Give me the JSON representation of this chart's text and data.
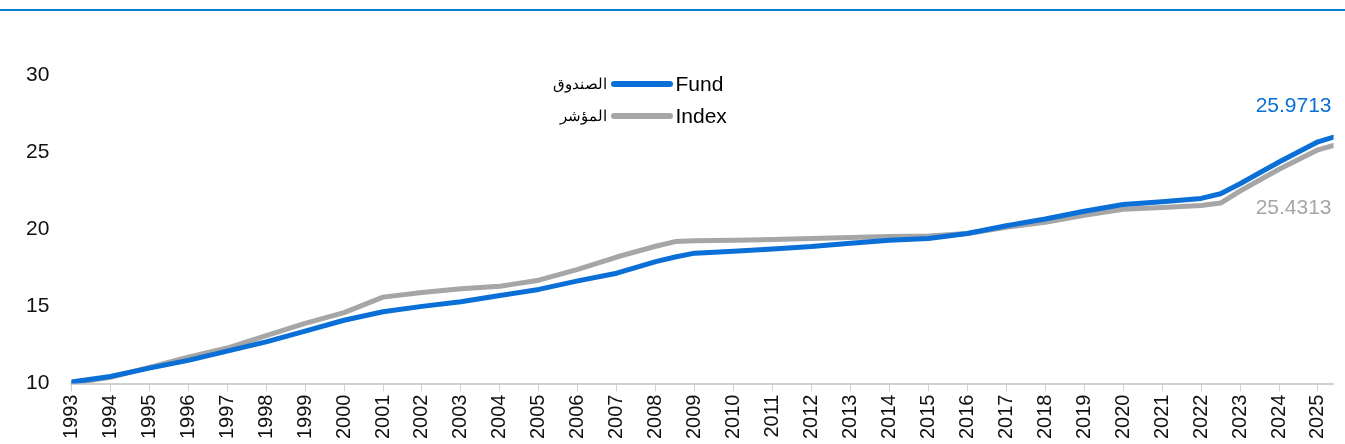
{
  "chart_data": {
    "type": "line",
    "x": [
      1993,
      1994,
      1995,
      1996,
      1997,
      1998,
      1999,
      2000,
      2001,
      2002,
      2003,
      2004,
      2005,
      2006,
      2007,
      2008,
      2008.5,
      2009,
      2010,
      2011,
      2012,
      2013,
      2014,
      2015,
      2016,
      2017,
      2018,
      2019,
      2020,
      2021,
      2022,
      2022.5,
      2023,
      2024,
      2025,
      2025.4
    ],
    "series": [
      {
        "name": "Fund",
        "color": "#0a6fd6",
        "values": [
          10.1,
          10.45,
          11.0,
          11.5,
          12.1,
          12.7,
          13.4,
          14.1,
          14.65,
          15.0,
          15.3,
          15.7,
          16.1,
          16.65,
          17.15,
          17.9,
          18.2,
          18.45,
          18.57,
          18.72,
          18.88,
          19.1,
          19.29,
          19.4,
          19.72,
          20.23,
          20.66,
          21.17,
          21.6,
          21.79,
          22.0,
          22.3,
          22.95,
          24.36,
          25.67,
          25.9713
        ]
      },
      {
        "name": "Index",
        "color": "#a6a6a6",
        "values": [
          10.0,
          10.4,
          11.05,
          11.7,
          12.3,
          13.1,
          13.9,
          14.6,
          15.6,
          15.9,
          16.15,
          16.3,
          16.7,
          17.4,
          18.2,
          18.9,
          19.2,
          19.25,
          19.29,
          19.33,
          19.4,
          19.47,
          19.53,
          19.56,
          19.72,
          20.13,
          20.45,
          20.91,
          21.29,
          21.41,
          21.54,
          21.7,
          22.48,
          23.89,
          25.15,
          25.4313
        ]
      }
    ],
    "annotations": [
      {
        "text": "25.9713",
        "x": 2025.4,
        "y": 25.9713
      },
      {
        "text": "25.4313",
        "x": 2025.4,
        "y": 25.4313
      },
      "الصندوق",
      "المؤشر"
    ],
    "xlim": [
      1993,
      2025.4
    ],
    "xticks": [
      1993,
      1994,
      1995,
      1996,
      1997,
      1998,
      1999,
      2000,
      2001,
      2002,
      2003,
      2004,
      2005,
      2006,
      2007,
      2008,
      2009,
      2010,
      2011,
      2012,
      2013,
      2014,
      2015,
      2016,
      2017,
      2018,
      2019,
      2020,
      2021,
      2022,
      2023,
      2024,
      2025
    ],
    "ylim": [
      10,
      30
    ],
    "yticks": [
      10,
      15,
      20,
      25,
      30
    ],
    "grid": false,
    "legend": "top",
    "marker": "none",
    "line_style": "solid"
  }
}
